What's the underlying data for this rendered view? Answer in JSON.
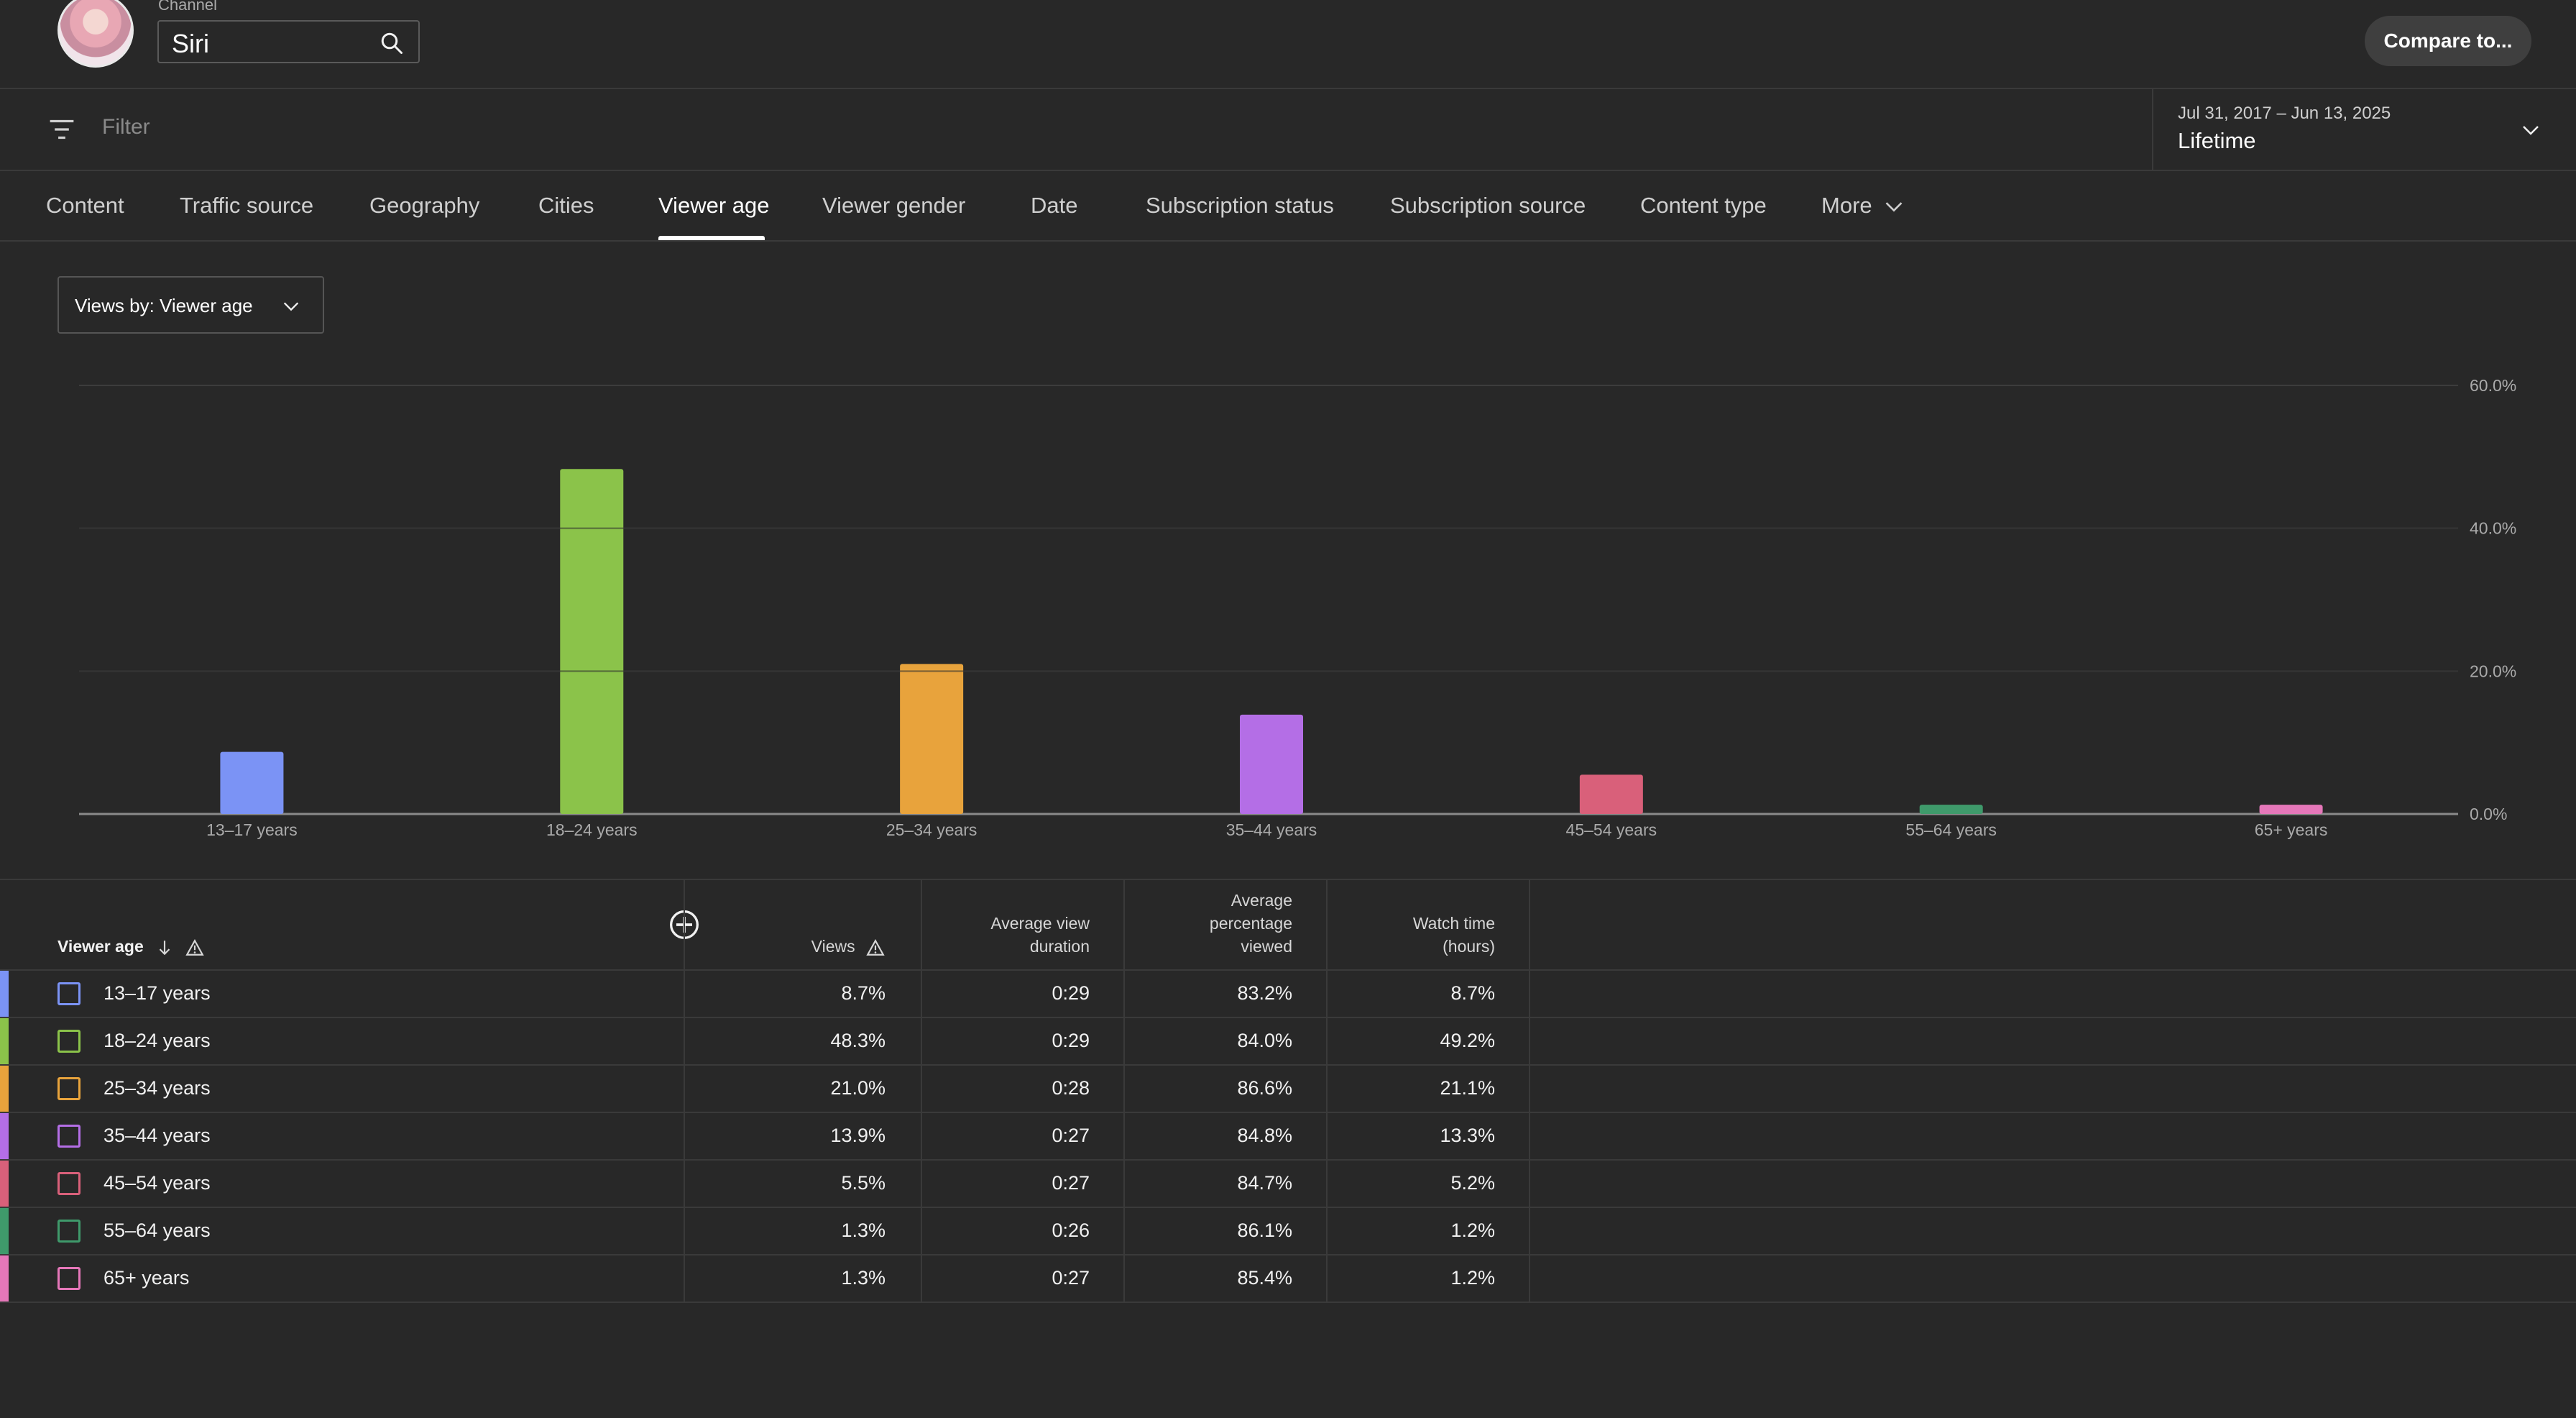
{
  "header": {
    "channel_label": "Channel",
    "channel_value": "Siri",
    "compare_label": "Compare to..."
  },
  "filter": {
    "placeholder": "Filter",
    "date_range": "Jul 31, 2017 – Jun 13, 2025",
    "date_period": "Lifetime"
  },
  "tabs": [
    {
      "label": "Content"
    },
    {
      "label": "Traffic source"
    },
    {
      "label": "Geography"
    },
    {
      "label": "Cities"
    },
    {
      "label": "Viewer age",
      "active": true
    },
    {
      "label": "Viewer gender"
    },
    {
      "label": "Date"
    },
    {
      "label": "Subscription status"
    },
    {
      "label": "Subscription source"
    },
    {
      "label": "Content type"
    },
    {
      "label": "More"
    }
  ],
  "views_dropdown": {
    "label": "Views by: Viewer age"
  },
  "chart_data": {
    "type": "bar",
    "categories": [
      "13–17 years",
      "18–24 years",
      "25–34 years",
      "35–44 years",
      "45–54 years",
      "55–64 years",
      "65+ years"
    ],
    "values": [
      8.7,
      48.3,
      21.0,
      13.9,
      5.5,
      1.3,
      1.3
    ],
    "colors": [
      "#7b93f5",
      "#8bc34a",
      "#e8a33c",
      "#b46ee6",
      "#d9607a",
      "#3f9a6b",
      "#e577b9"
    ],
    "ylim": [
      0,
      60
    ],
    "yticks": [
      "0.0%",
      "20.0%",
      "40.0%",
      "60.0%"
    ],
    "grid": true,
    "title": "",
    "xlabel": "",
    "ylabel": ""
  },
  "table": {
    "headers": {
      "age": "Viewer age",
      "views": "Views",
      "avd_1": "Average view",
      "avd_2": "duration",
      "apv_1": "Average",
      "apv_2": "percentage",
      "apv_3": "viewed",
      "wt_1": "Watch time",
      "wt_2": "(hours)"
    },
    "rows": [
      {
        "label": "13–17 years",
        "views": "8.7%",
        "avd": "0:29",
        "apv": "83.2%",
        "wt": "8.7%",
        "color": "#7b93f5"
      },
      {
        "label": "18–24 years",
        "views": "48.3%",
        "avd": "0:29",
        "apv": "84.0%",
        "wt": "49.2%",
        "color": "#8bc34a"
      },
      {
        "label": "25–34 years",
        "views": "21.0%",
        "avd": "0:28",
        "apv": "86.6%",
        "wt": "21.1%",
        "color": "#e8a33c"
      },
      {
        "label": "35–44 years",
        "views": "13.9%",
        "avd": "0:27",
        "apv": "84.8%",
        "wt": "13.3%",
        "color": "#b46ee6"
      },
      {
        "label": "45–54 years",
        "views": "5.5%",
        "avd": "0:27",
        "apv": "84.7%",
        "wt": "5.2%",
        "color": "#d9607a"
      },
      {
        "label": "55–64 years",
        "views": "1.3%",
        "avd": "0:26",
        "apv": "86.1%",
        "wt": "1.2%",
        "color": "#3f9a6b"
      },
      {
        "label": "65+ years",
        "views": "1.3%",
        "avd": "0:27",
        "apv": "85.4%",
        "wt": "1.2%",
        "color": "#e577b9"
      }
    ]
  }
}
